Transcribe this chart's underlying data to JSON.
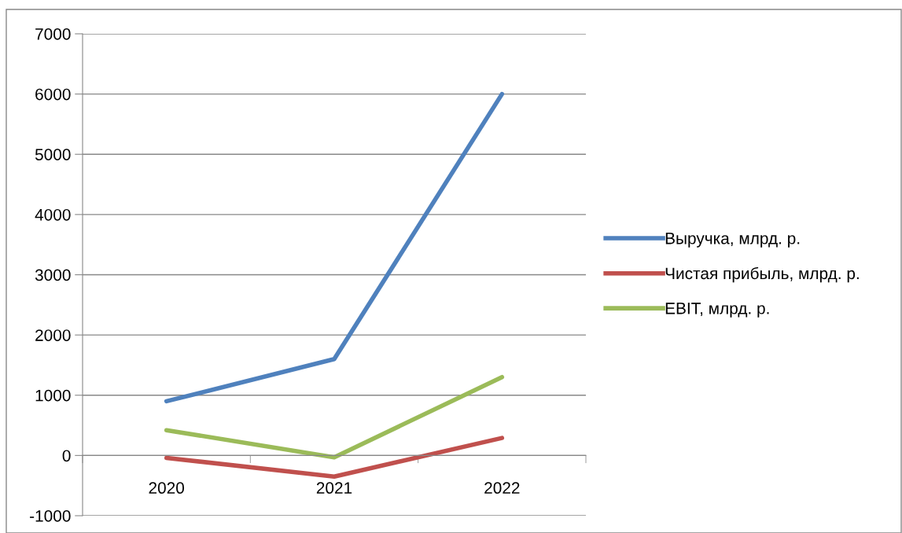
{
  "chart_data": {
    "type": "line",
    "categories": [
      "2020",
      "2021",
      "2022"
    ],
    "series": [
      {
        "name": "Выручка, млрд. р.",
        "color": "#4f81bd",
        "values": [
          900,
          1600,
          6000
        ]
      },
      {
        "name": "Чистая прибыль, млрд. р.",
        "color": "#c0504d",
        "values": [
          -40,
          -350,
          290
        ]
      },
      {
        "name": "EBIT, млрд. р.",
        "color": "#9bbb59",
        "values": [
          420,
          -30,
          1300
        ]
      }
    ],
    "ylim": [
      -1000,
      7000
    ],
    "yticks": [
      -1000,
      0,
      1000,
      2000,
      3000,
      4000,
      5000,
      6000,
      7000
    ],
    "grid": "y",
    "legend": "right",
    "marker": "none",
    "line_style": "solid"
  }
}
